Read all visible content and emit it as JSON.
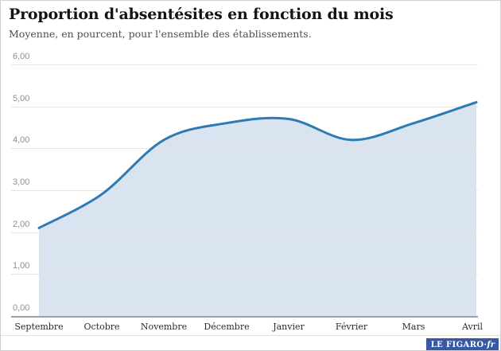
{
  "header": {
    "title": "Proportion d'absentésites en fonction du mois",
    "subtitle": "Moyenne, en pourcent, pour l'ensemble des établissements."
  },
  "chart_data": {
    "type": "area",
    "title": "Proportion d'absentésites en fonction du mois",
    "subtitle": "Moyenne, en pourcent, pour l'ensemble des établissements.",
    "categories": [
      "Septembre",
      "Octobre",
      "Novembre",
      "Décembre",
      "Janvier",
      "Février",
      "Mars",
      "Avril"
    ],
    "values": [
      2.1,
      2.9,
      4.2,
      4.6,
      4.7,
      4.2,
      4.6,
      5.1
    ],
    "xlabel": "",
    "ylabel": "",
    "ylim": [
      0,
      6
    ],
    "yticks": [
      6,
      5,
      4,
      3,
      2,
      1,
      0
    ],
    "ytick_labels": [
      "6,00",
      "5,00",
      "4,00",
      "3,00",
      "2,00",
      "1,00",
      "0,00"
    ],
    "grid": true,
    "legend": "none",
    "line_color": "#2d7bb5",
    "fill_color": "#d9e4f0",
    "grid_color": "#e4e4e4",
    "axis_color": "#9aa0a6"
  },
  "footer": {
    "brand": "LE FIGARO",
    "brand_separator": "·",
    "brand_suffix": "fr",
    "brand_bg": "#3758a5"
  }
}
